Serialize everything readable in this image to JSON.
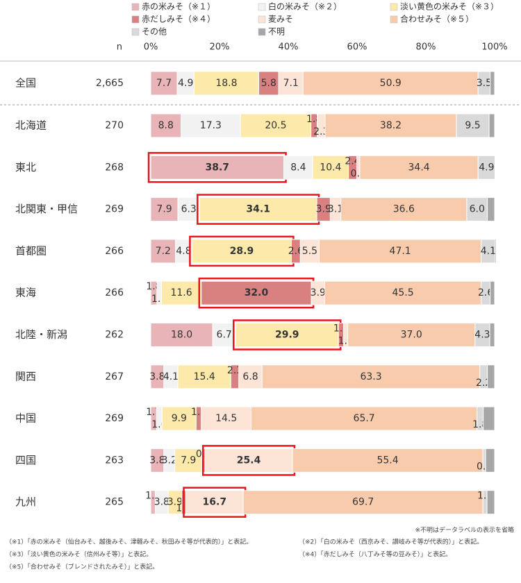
{
  "chart_data": {
    "type": "stacked_bar_100",
    "legend_position": "top",
    "n_label": "n",
    "categories": [
      "全国",
      "北海道",
      "東北",
      "北関東・甲信",
      "首都圏",
      "東海",
      "北陸・新潟",
      "関西",
      "中国",
      "四国",
      "九州"
    ],
    "n_values": [
      "2,665",
      "270",
      "268",
      "269",
      "266",
      "266",
      "262",
      "267",
      "269",
      "263",
      "265"
    ],
    "xlim": [
      0,
      100
    ],
    "xticks": [
      {
        "value": 0,
        "label": "0%"
      },
      {
        "value": 20,
        "label": "20%"
      },
      {
        "value": 40,
        "label": "40%"
      },
      {
        "value": 60,
        "label": "60%"
      },
      {
        "value": 80,
        "label": "80%"
      },
      {
        "value": 100,
        "label": "100%"
      }
    ],
    "series": [
      {
        "name": "赤の米みそ（※１）",
        "color": "#e8b4b8",
        "values": [
          7.7,
          8.8,
          38.7,
          7.9,
          7.2,
          1.8,
          18.0,
          3.8,
          1.7,
          3.8,
          1.3
        ],
        "value_labels": [
          "7.7",
          "8.8",
          "38.7",
          "7.9",
          "7.2",
          "1.8",
          "18.0",
          "3.8",
          "1.7",
          "3.8",
          "1.3"
        ]
      },
      {
        "name": "白の米みそ（※２）",
        "color": "#f2f2f2",
        "values": [
          4.9,
          17.3,
          8.4,
          6.3,
          4.8,
          1.3,
          6.7,
          4.1,
          1.6,
          3.2,
          3.8
        ],
        "value_labels": [
          "4.9",
          "17.3",
          "8.4",
          "6.3",
          "4.8",
          "1.3",
          "6.7",
          "4.1",
          "1.6",
          "3.2",
          "3.8"
        ]
      },
      {
        "name": "淡い黄色の米みそ（※３）",
        "color": "#fde9a9",
        "values": [
          18.8,
          20.5,
          10.4,
          34.1,
          28.9,
          11.6,
          29.9,
          15.4,
          9.9,
          7.9,
          3.9
        ],
        "value_labels": [
          "18.8",
          "20.5",
          "10.4",
          "34.1",
          "28.9",
          "11.6",
          "29.9",
          "15.4",
          "9.9",
          "7.9",
          "3.9"
        ]
      },
      {
        "name": "赤だしみそ（※４）",
        "color": "#d98080",
        "values": [
          5.8,
          1.8,
          2.4,
          3.9,
          2.6,
          32.0,
          1.5,
          2.3,
          1.5,
          0.9,
          1.2
        ],
        "value_labels": [
          "5.8",
          "1.8",
          "2.4",
          "3.9",
          "2.6",
          "32.0",
          "1.5",
          "2.3",
          "1.5",
          "0.9",
          "1.2"
        ]
      },
      {
        "name": "麦みそ",
        "color": "#fce4d6",
        "values": [
          7.1,
          2.3,
          0.9,
          3.1,
          5.5,
          3.9,
          1.2,
          6.8,
          14.5,
          25.4,
          16.7
        ],
        "value_labels": [
          "7.1",
          "2.3",
          "0.9",
          "3.1",
          "5.5",
          "3.9",
          "1.2",
          "6.8",
          "14.5",
          "25.4",
          "16.7"
        ]
      },
      {
        "name": "合わせみそ（※５）",
        "color": "#f8cbad",
        "values": [
          50.9,
          38.2,
          34.4,
          36.6,
          47.1,
          45.5,
          37.0,
          63.3,
          65.7,
          55.4,
          69.7
        ],
        "value_labels": [
          "50.9",
          "38.2",
          "34.4",
          "36.6",
          "47.1",
          "45.5",
          "37.0",
          "63.3",
          "65.7",
          "55.4",
          "69.7"
        ]
      },
      {
        "name": "その他",
        "color": "#d9d9d9",
        "values": [
          3.5,
          9.5,
          4.9,
          6.0,
          4.1,
          2.6,
          4.3,
          2.2,
          1.8,
          0.8,
          1.2
        ],
        "value_labels": [
          "3.5",
          "9.5",
          "4.9",
          "6.0",
          "4.1",
          "2.6",
          "4.3",
          "2.2",
          "1.8",
          "0.8",
          "1.2"
        ]
      },
      {
        "name": "不明",
        "color": "#a6a6a6",
        "values": [
          1.3,
          1.6,
          0.2,
          2.1,
          0.3,
          1.3,
          1.4,
          2.1,
          3.3,
          2.6,
          2.2
        ]
      }
    ],
    "highlights": [
      {
        "category": 2,
        "series": 0
      },
      {
        "category": 3,
        "series": 2
      },
      {
        "category": 4,
        "series": 2
      },
      {
        "category": 5,
        "series": 3
      },
      {
        "category": 6,
        "series": 2
      },
      {
        "category": 9,
        "series": 4
      },
      {
        "category": 10,
        "series": 4
      }
    ],
    "highlight_color": "#e8141e",
    "notes": [
      "※不明はデータラベルの表示を省略",
      "（※1）「赤の米みそ（仙台みそ、越後みそ、津軽みそ、秋田みそ等が代表的）」と表記。",
      "（※2）「白の米みそ（西京みそ、讃岐みそ等が代表的）」と表記。",
      "（※3）「淡い黄色の米みそ（信州みそ等）」と表記。",
      "（※4）「赤だしみそ（八丁みそ等の豆みそ）」と表記。",
      "（※5）「合わせみそ（ブレンドされたみそ）」と表記。"
    ]
  }
}
